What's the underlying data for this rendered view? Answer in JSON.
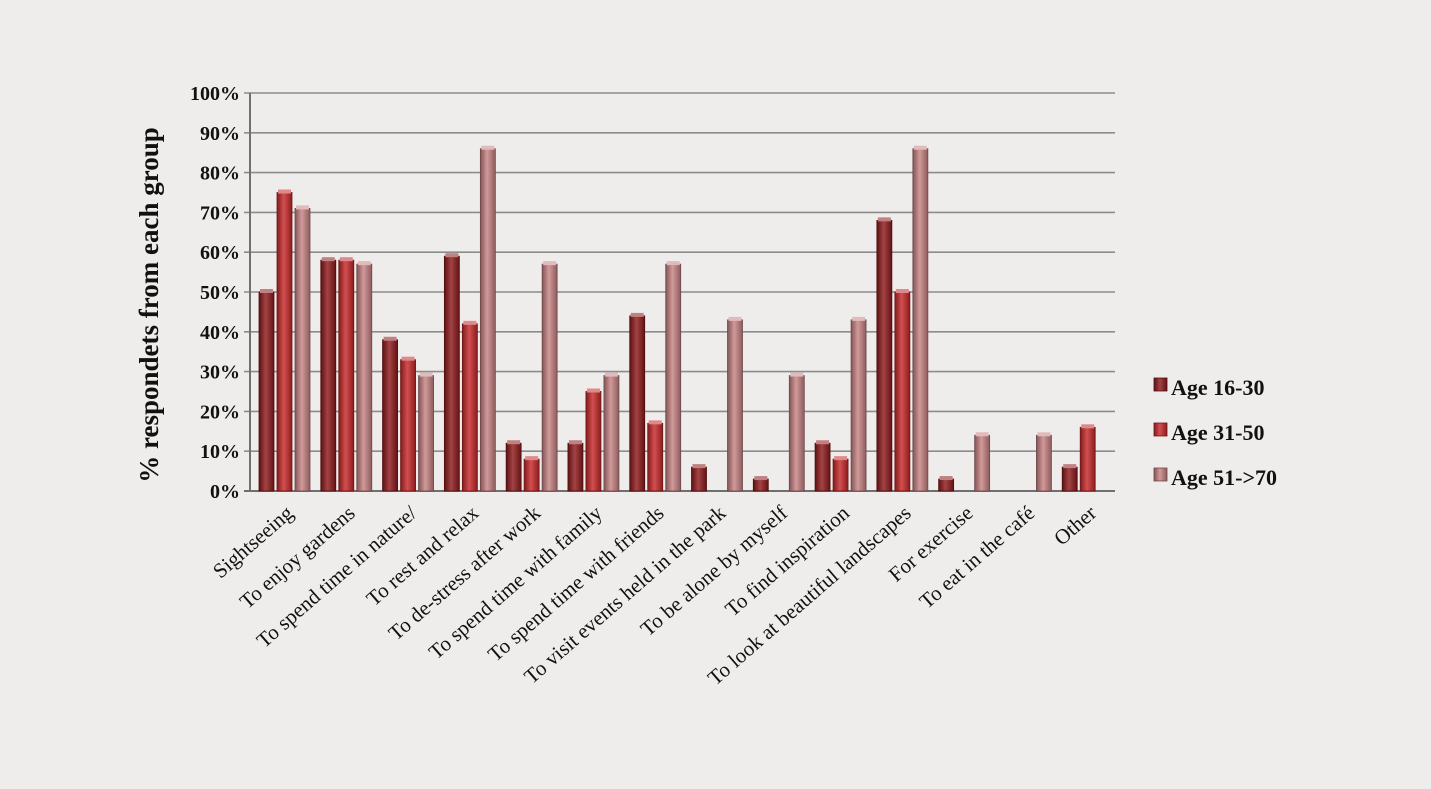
{
  "chart_data": {
    "type": "bar",
    "title": "",
    "xlabel": "",
    "ylabel": "% respondets from  each group",
    "ylim": [
      0,
      100
    ],
    "yticks": [
      "0%",
      "10%",
      "20%",
      "30%",
      "40%",
      "50%",
      "60%",
      "70%",
      "80%",
      "90%",
      "100%"
    ],
    "grid": true,
    "legend_position": "right",
    "categories": [
      "Sightseeing",
      "To enjoy gardens",
      "To spend time in nature/",
      "To rest and relax",
      "To de-stress after work",
      "To spend time with family",
      "To spend time with friends",
      "To visit events held in the park",
      "To be alone by myself",
      "To find inspiration",
      "To look at beautiful landscapes",
      "For exercise",
      "To eat in the café",
      "Other"
    ],
    "series": [
      {
        "name": "Age 16-30",
        "color": "#8f1a1c",
        "values": [
          50,
          58,
          38,
          59,
          12,
          12,
          44,
          6,
          3,
          12,
          68,
          3,
          0,
          6
        ]
      },
      {
        "name": "Age 31-50",
        "color": "#c8282a",
        "values": [
          75,
          58,
          33,
          42,
          8,
          25,
          17,
          0,
          0,
          8,
          50,
          0,
          0,
          16
        ]
      },
      {
        "name": "Age 51->70",
        "color": "#c88384",
        "values": [
          71,
          57,
          29,
          86,
          57,
          29,
          57,
          43,
          29,
          43,
          86,
          14,
          14,
          0
        ]
      }
    ]
  }
}
